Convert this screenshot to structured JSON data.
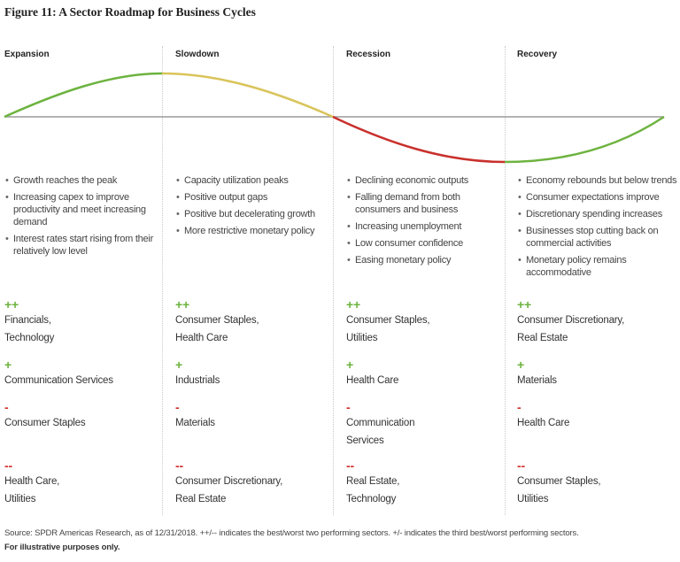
{
  "title": "Figure 11: A Sector Roadmap for Business Cycles",
  "columns": [
    {
      "header": "Expansion",
      "bullets": [
        "Growth reaches the peak",
        "Increasing capex to improve productivity and meet increasing demand",
        "Interest rates start rising from their relatively low level"
      ],
      "ratings": [
        {
          "symbol": "++",
          "sectors": [
            "Financials,",
            "Technology"
          ]
        },
        {
          "symbol": "+",
          "sectors": [
            "Communication Services"
          ]
        },
        {
          "symbol": "-",
          "sectors": [
            "Consumer Staples"
          ]
        },
        {
          "symbol": "--",
          "sectors": [
            "Health Care,",
            "Utilities"
          ]
        }
      ]
    },
    {
      "header": "Slowdown",
      "bullets": [
        "Capacity utilization peaks",
        "Positive output gaps",
        "Positive but decelerating growth",
        "More restrictive monetary policy"
      ],
      "ratings": [
        {
          "symbol": "++",
          "sectors": [
            "Consumer Staples,",
            "Health Care"
          ]
        },
        {
          "symbol": "+",
          "sectors": [
            "Industrials"
          ]
        },
        {
          "symbol": "-",
          "sectors": [
            "Materials"
          ]
        },
        {
          "symbol": "--",
          "sectors": [
            "Consumer Discretionary,",
            "Real Estate"
          ]
        }
      ]
    },
    {
      "header": "Recession",
      "bullets": [
        "Declining economic outputs",
        "Falling demand from both consumers and business",
        "Increasing unemployment",
        "Low consumer confidence",
        "Easing monetary policy"
      ],
      "ratings": [
        {
          "symbol": "++",
          "sectors": [
            "Consumer Staples,",
            "Utilities"
          ]
        },
        {
          "symbol": "+",
          "sectors": [
            "Health Care"
          ]
        },
        {
          "symbol": "-",
          "sectors": [
            "Communication",
            "Services"
          ]
        },
        {
          "symbol": "--",
          "sectors": [
            "Real Estate,",
            "Technology"
          ]
        }
      ]
    },
    {
      "header": "Recovery",
      "bullets": [
        "Economy rebounds but below trends",
        "Consumer expectations improve",
        "Discretionary spending increases",
        "Businesses stop cutting back on commercial activities",
        "Monetary policy remains accommodative"
      ],
      "ratings": [
        {
          "symbol": "++",
          "sectors": [
            "Consumer Discretionary,",
            "Real Estate"
          ]
        },
        {
          "symbol": "+",
          "sectors": [
            "Materials"
          ]
        },
        {
          "symbol": "-",
          "sectors": [
            "Health Care"
          ]
        },
        {
          "symbol": "--",
          "sectors": [
            "Consumer Staples,",
            "Utilities"
          ]
        }
      ]
    }
  ],
  "footer": {
    "source": "Source: SPDR Americas Research, as of 12/31/2018. ++/-- indicates the best/worst two performing sectors. +/- indicates the third best/worst performing sectors.",
    "note": "For illustrative purposes only."
  }
}
